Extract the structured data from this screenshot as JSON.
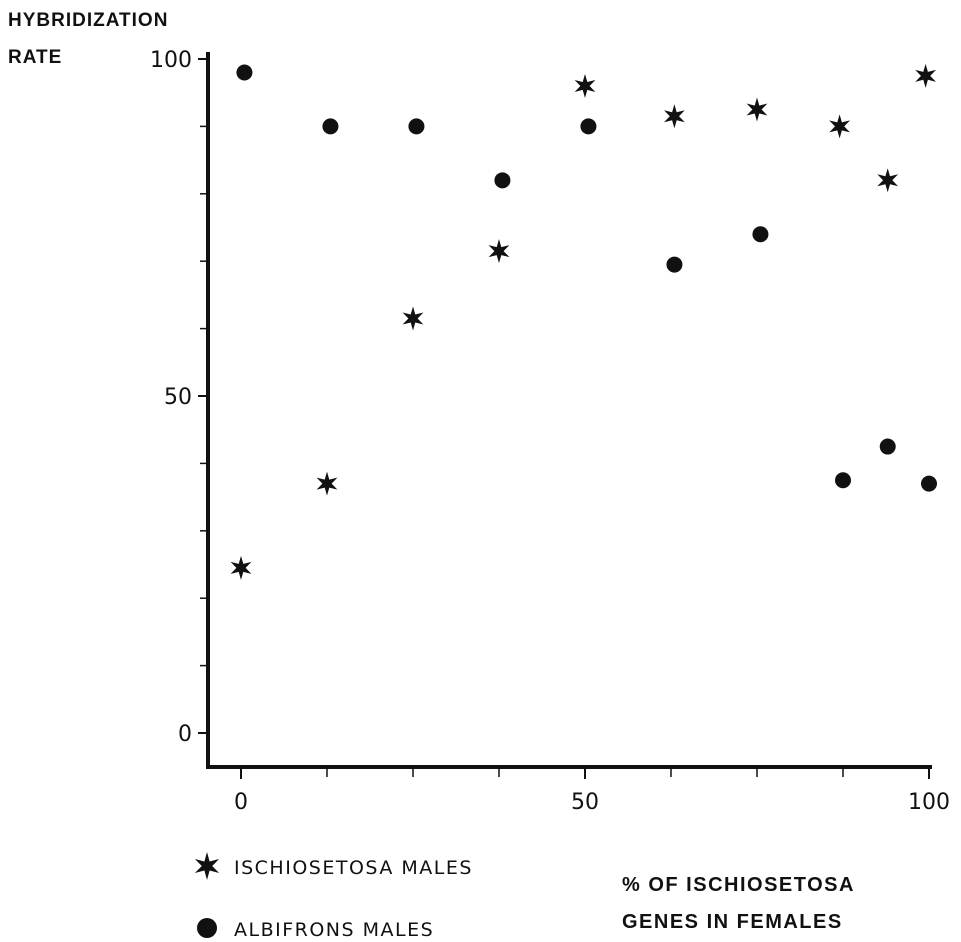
{
  "chart_data": {
    "type": "scatter",
    "ylabel_lines": [
      "HYBRIDIZATION",
      "RATE"
    ],
    "xlabel_lines": [
      "% OF ISCHIOSETOSA",
      "GENES  IN  FEMALES"
    ],
    "xlim": [
      0,
      100
    ],
    "ylim": [
      0,
      100
    ],
    "x_tick_labels": [
      "0",
      "50",
      "100"
    ],
    "y_tick_labels": [
      "0",
      "50",
      "100"
    ],
    "x_minor_ticks": [
      12.5,
      25,
      37.5,
      62.5,
      75,
      87.5
    ],
    "y_minor_ticks": [
      10,
      20,
      30,
      40,
      60,
      70,
      80,
      90
    ],
    "series": [
      {
        "name": "ISCHIOSETOSA  MALES",
        "marker": "star",
        "color": "#111111",
        "points": [
          {
            "x": 0,
            "y": 24.5
          },
          {
            "x": 12.5,
            "y": 37
          },
          {
            "x": 25,
            "y": 61.5
          },
          {
            "x": 37.5,
            "y": 71.5
          },
          {
            "x": 50,
            "y": 96
          },
          {
            "x": 63,
            "y": 91.5
          },
          {
            "x": 75,
            "y": 92.5
          },
          {
            "x": 87,
            "y": 90
          },
          {
            "x": 94,
            "y": 82
          },
          {
            "x": 99.5,
            "y": 97.5
          }
        ]
      },
      {
        "name": "ALBIFRONS  MALES",
        "marker": "circle",
        "color": "#111111",
        "points": [
          {
            "x": 0.5,
            "y": 98
          },
          {
            "x": 13,
            "y": 90
          },
          {
            "x": 25.5,
            "y": 90
          },
          {
            "x": 38,
            "y": 82
          },
          {
            "x": 50.5,
            "y": 90
          },
          {
            "x": 63,
            "y": 69.5
          },
          {
            "x": 75.5,
            "y": 74
          },
          {
            "x": 87.5,
            "y": 37.5
          },
          {
            "x": 94,
            "y": 42.5
          },
          {
            "x": 100,
            "y": 37
          }
        ]
      }
    ],
    "legend_position": "bottom-left",
    "grid": false
  }
}
